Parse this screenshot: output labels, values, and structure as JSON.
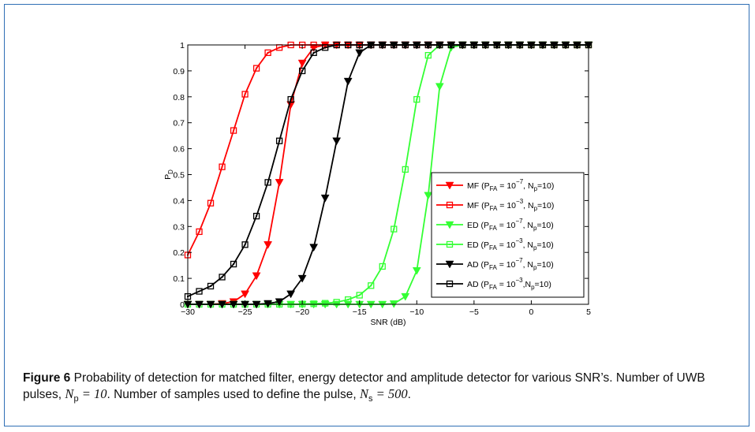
{
  "chart_data": {
    "type": "line",
    "xlabel": "SNR (dB)",
    "ylabel": "P",
    "ylabel_sub": "D",
    "xlim": [
      -30,
      5
    ],
    "ylim": [
      0,
      1
    ],
    "x_ticks": [
      -30,
      -25,
      -20,
      -15,
      -10,
      -5,
      0,
      5
    ],
    "y_ticks": [
      0,
      0.1,
      0.2,
      0.3,
      0.4,
      0.5,
      0.6,
      0.7,
      0.8,
      0.9,
      1
    ],
    "x_tick_labels": [
      "−30",
      "−25",
      "−20",
      "−15",
      "−10",
      "−5",
      "0",
      "5"
    ],
    "y_tick_labels": [
      "0",
      "0.1",
      "0.2",
      "0.3",
      "0.4",
      "0.5",
      "0.6",
      "0.7",
      "0.8",
      "0.9",
      "1"
    ],
    "grid": false,
    "legend_position": "right-center",
    "series": [
      {
        "color": "#ff0000",
        "marker": "triangle-down",
        "legend_parts": [
          "MF (P",
          "FA",
          " = 10",
          "−7",
          ", N",
          "p",
          "=10)"
        ],
        "x": [
          -30,
          -29,
          -28,
          -27,
          -26,
          -25,
          -24,
          -23,
          -22,
          -21,
          -20,
          -19,
          -18,
          -17,
          -16,
          -15,
          -14,
          -13,
          -12,
          -11,
          -10,
          -9,
          -8,
          -7,
          -6,
          -5,
          -4,
          -3,
          -2,
          -1,
          0,
          1,
          2,
          3,
          4,
          5
        ],
        "y": [
          0,
          0,
          0,
          0.003,
          0.01,
          0.04,
          0.11,
          0.23,
          0.47,
          0.77,
          0.93,
          0.99,
          1,
          1,
          1,
          1,
          1,
          1,
          1,
          1,
          1,
          1,
          1,
          1,
          1,
          1,
          1,
          1,
          1,
          1,
          1,
          1,
          1,
          1,
          1,
          1
        ]
      },
      {
        "color": "#ff0000",
        "marker": "square",
        "legend_parts": [
          "MF (P",
          "FA",
          " = 10",
          "−3",
          ", N",
          "p",
          "=10)"
        ],
        "x": [
          -30,
          -29,
          -28,
          -27,
          -26,
          -25,
          -24,
          -23,
          -22,
          -21,
          -20,
          -19,
          -18,
          -17,
          -16,
          -15,
          -14,
          -13,
          -12,
          -11,
          -10,
          -9,
          -8,
          -7,
          -6,
          -5,
          -4,
          -3,
          -2,
          -1,
          0,
          1,
          2,
          3,
          4,
          5
        ],
        "y": [
          0.19,
          0.28,
          0.39,
          0.53,
          0.67,
          0.81,
          0.91,
          0.97,
          0.99,
          1,
          1,
          1,
          1,
          1,
          1,
          1,
          1,
          1,
          1,
          1,
          1,
          1,
          1,
          1,
          1,
          1,
          1,
          1,
          1,
          1,
          1,
          1,
          1,
          1,
          1,
          1
        ]
      },
      {
        "color": "#33ff33",
        "marker": "triangle-down",
        "legend_parts": [
          "ED (P",
          "FA",
          " = 10",
          "−7",
          ", N",
          "p",
          "=10)"
        ],
        "x": [
          -30,
          -29,
          -28,
          -27,
          -26,
          -25,
          -24,
          -23,
          -22,
          -21,
          -20,
          -19,
          -18,
          -17,
          -16,
          -15,
          -14,
          -13,
          -12,
          -11,
          -10,
          -9,
          -8,
          -7,
          -6,
          -5,
          -4,
          -3,
          -2,
          -1,
          0,
          1,
          2,
          3,
          4,
          5
        ],
        "y": [
          0,
          0,
          0,
          0,
          0,
          0,
          0,
          0,
          0,
          0,
          0,
          0,
          0,
          0,
          0,
          0,
          0,
          0,
          0.002,
          0.03,
          0.13,
          0.42,
          0.84,
          0.99,
          1,
          1,
          1,
          1,
          1,
          1,
          1,
          1,
          1,
          1,
          1,
          1
        ]
      },
      {
        "color": "#33ff33",
        "marker": "square",
        "legend_parts": [
          "ED (P",
          "FA",
          " = 10",
          "−3",
          ", N",
          "p",
          "=10)"
        ],
        "x": [
          -30,
          -29,
          -28,
          -27,
          -26,
          -25,
          -24,
          -23,
          -22,
          -21,
          -20,
          -19,
          -18,
          -17,
          -16,
          -15,
          -14,
          -13,
          -12,
          -11,
          -10,
          -9,
          -8,
          -7,
          -6,
          -5,
          -4,
          -3,
          -2,
          -1,
          0,
          1,
          2,
          3,
          4,
          5
        ],
        "y": [
          0,
          0,
          0,
          0,
          0,
          0,
          0,
          0,
          0,
          0,
          0.001,
          0.002,
          0.004,
          0.008,
          0.018,
          0.035,
          0.072,
          0.146,
          0.29,
          0.52,
          0.79,
          0.96,
          1,
          1,
          1,
          1,
          1,
          1,
          1,
          1,
          1,
          1,
          1,
          1,
          1,
          1
        ]
      },
      {
        "color": "#000000",
        "marker": "triangle-down",
        "legend_parts": [
          "AD (P",
          "FA",
          " = 10",
          "−7",
          ", N",
          "p",
          "=10)"
        ],
        "x": [
          -30,
          -29,
          -28,
          -27,
          -26,
          -25,
          -24,
          -23,
          -22,
          -21,
          -20,
          -19,
          -18,
          -17,
          -16,
          -15,
          -14,
          -13,
          -12,
          -11,
          -10,
          -9,
          -8,
          -7,
          -6,
          -5,
          -4,
          -3,
          -2,
          -1,
          0,
          1,
          2,
          3,
          4,
          5
        ],
        "y": [
          0,
          0,
          0,
          0,
          0,
          0,
          0,
          0.003,
          0.01,
          0.04,
          0.1,
          0.22,
          0.41,
          0.63,
          0.86,
          0.97,
          1,
          1,
          1,
          1,
          1,
          1,
          1,
          1,
          1,
          1,
          1,
          1,
          1,
          1,
          1,
          1,
          1,
          1,
          1,
          1
        ]
      },
      {
        "color": "#000000",
        "marker": "square",
        "legend_parts": [
          "AD (P",
          "FA",
          " = 10",
          "−3",
          ",N",
          "p",
          "=10)"
        ],
        "x": [
          -30,
          -29,
          -28,
          -27,
          -26,
          -25,
          -24,
          -23,
          -22,
          -21,
          -20,
          -19,
          -18,
          -17,
          -16,
          -15,
          -14,
          -13,
          -12,
          -11,
          -10,
          -9,
          -8,
          -7,
          -6,
          -5,
          -4,
          -3,
          -2,
          -1,
          0,
          1,
          2,
          3,
          4,
          5
        ],
        "y": [
          0.03,
          0.05,
          0.07,
          0.105,
          0.155,
          0.23,
          0.34,
          0.47,
          0.63,
          0.79,
          0.9,
          0.97,
          0.99,
          1,
          1,
          1,
          1,
          1,
          1,
          1,
          1,
          1,
          1,
          1,
          1,
          1,
          1,
          1,
          1,
          1,
          1,
          1,
          1,
          1,
          1,
          1
        ]
      }
    ]
  },
  "caption": {
    "label": "Figure 6",
    "text_1": " Probability of detection for matched filter, energy detector and amplitude detector for various SNR’s. Number of UWB pulses, ",
    "n_p_symbol": "N",
    "n_p_sub": "p",
    "n_p_value": " = 10",
    "text_2": ". Number of samples used to define the pulse, ",
    "n_s_symbol": "N",
    "n_s_sub": "s",
    "n_s_value": " = 500",
    "text_3": "."
  }
}
